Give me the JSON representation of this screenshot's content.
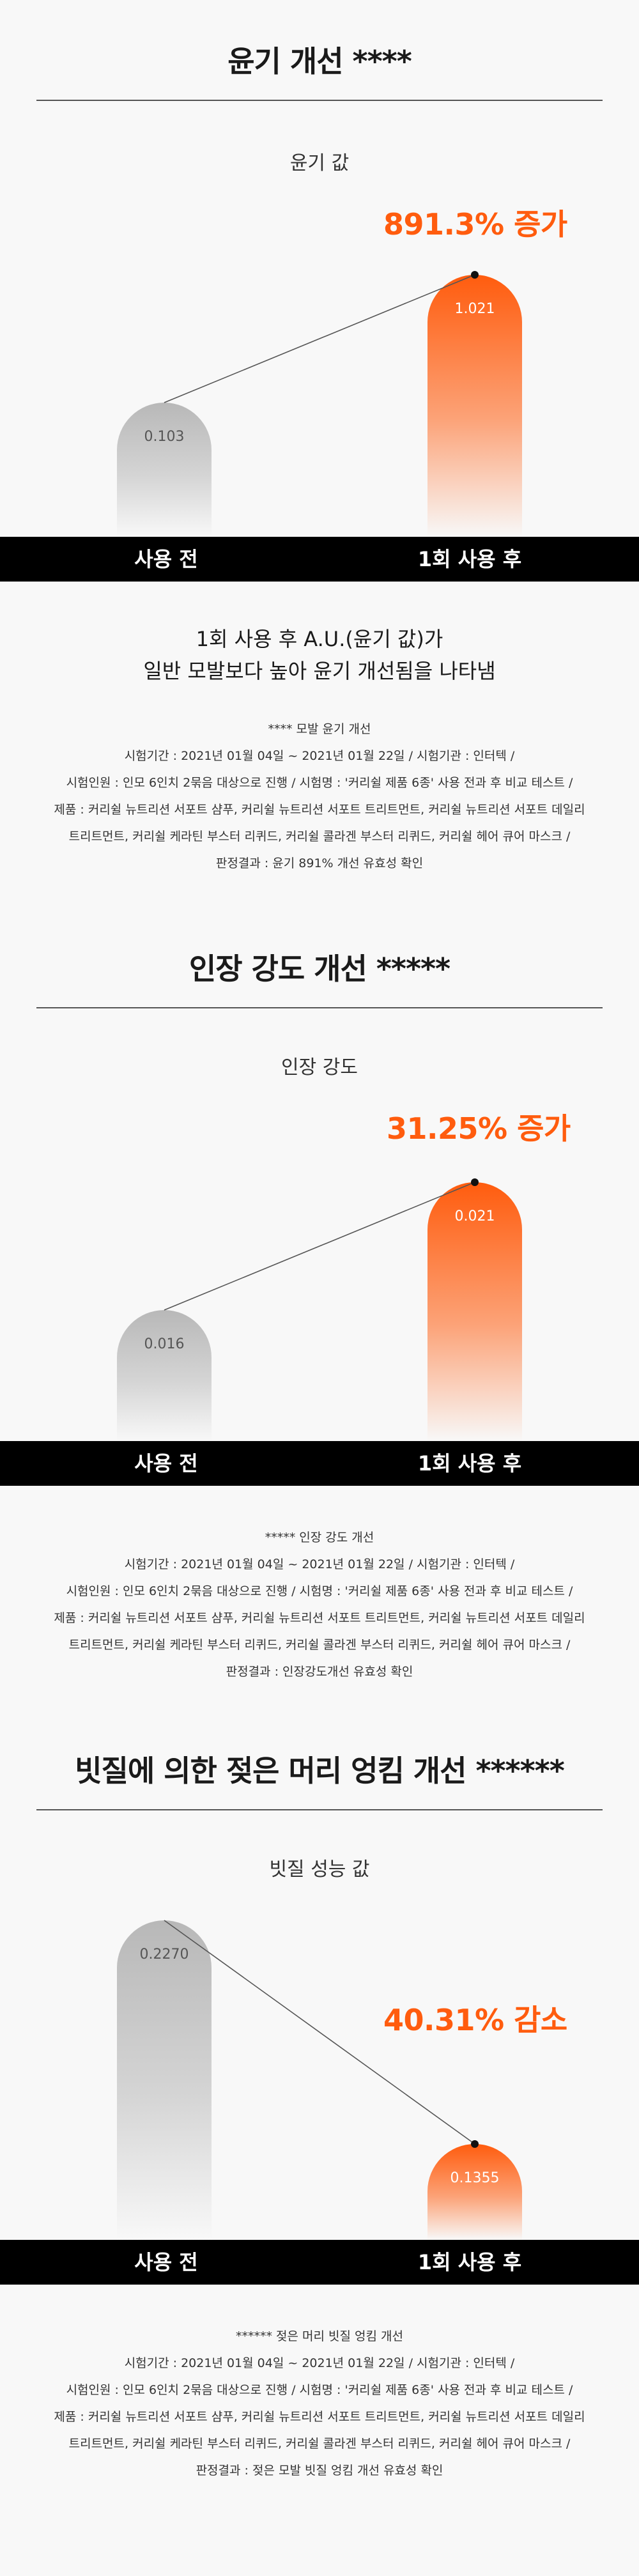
{
  "sections": [
    {
      "title": "윤기 개선 ****",
      "metric": "윤기 값",
      "result": "891.3% 증가",
      "before_label": "사용 전",
      "after_label": "1회 사용 후",
      "summary": [
        "1회 사용 후 A.U.(윤기 값)가",
        "일반 모발보다 높아 윤기 개선됨을 나타냄"
      ],
      "notes": [
        "**** 모발 윤기 개선",
        "시험기간 : 2021년 01월 04일 ~ 2021년 01월 22일 / 시험기관 : 인터텍 /",
        "시험인원 : 인모 6인치 2묶음 대상으로 진행 / 시험명 : '커리쉴 제품 6종' 사용 전과 후 비교 테스트 /",
        "제품 : 커리쉴 뉴트리션 서포트 샴푸, 커리쉴 뉴트리션 서포트 트리트먼트, 커리쉴 뉴트리션 서포트 데일리",
        "트리트먼트, 커리쉴 케라틴 부스터 리퀴드, 커리쉴 콜라겐 부스터 리퀴드, 커리쉴 헤어 큐어 마스크 /",
        "판정결과 : 윤기 891% 개선 유효성 확인"
      ]
    },
    {
      "title": "인장 강도 개선 *****",
      "metric": "인장 강도",
      "result": "31.25% 증가",
      "before_label": "사용 전",
      "after_label": "1회 사용 후",
      "notes": [
        "***** 인장 강도 개선",
        "시험기간 : 2021년 01월 04일 ~ 2021년 01월 22일 / 시험기관 : 인터텍 /",
        "시험인원 : 인모 6인치 2묶음 대상으로 진행 / 시험명 : '커리쉴 제품 6종' 사용 전과 후 비교 테스트 /",
        "제품 : 커리쉴 뉴트리션 서포트 샴푸, 커리쉴 뉴트리션 서포트 트리트먼트, 커리쉴 뉴트리션 서포트 데일리",
        "트리트먼트, 커리쉴 케라틴 부스터 리퀴드, 커리쉴 콜라겐 부스터 리퀴드, 커리쉴 헤어 큐어 마스크 /",
        "판정결과 : 인장강도개선 유효성 확인"
      ]
    },
    {
      "title": "빗질에 의한 젖은 머리 엉킴 개선 ******",
      "metric": "빗질 성능 값",
      "result": "40.31% 감소",
      "before_label": "사용 전",
      "after_label": "1회 사용 후",
      "notes": [
        "****** 젖은 머리 빗질 엉킴 개선",
        "시험기간 : 2021년 01월 04일 ~ 2021년 01월 22일 / 시험기관 : 인터텍 /",
        "시험인원 : 인모 6인치 2묶음 대상으로 진행 / 시험명 : '커리쉴 제품 6종' 사용 전과 후 비교 테스트 /",
        "제품 : 커리쉴 뉴트리션 서포트 샴푸, 커리쉴 뉴트리션 서포트 트리트먼트, 커리쉴 뉴트리션 서포트 데일리",
        "트리트먼트, 커리쉴 케라틴 부스터 리퀴드, 커리쉴 콜라겐 부스터 리퀴드, 커리쉴 헤어 큐어 마스크 /",
        "판정결과 : 젖은 모발 빗질 엉킴 개선 유효성 확인"
      ]
    }
  ],
  "chart_data": [
    {
      "type": "bar",
      "categories": [
        "사용 전",
        "1회 사용 후"
      ],
      "values": [
        0.103,
        1.021
      ],
      "value_labels": [
        "0.103",
        "1.021"
      ],
      "title": "윤기 값",
      "annotation": "891.3% 증가",
      "colors": [
        "#c8c8c8",
        "#ff5c0e"
      ]
    },
    {
      "type": "bar",
      "categories": [
        "사용 전",
        "1회 사용 후"
      ],
      "values": [
        0.016,
        0.021
      ],
      "value_labels": [
        "0.016",
        "0.021"
      ],
      "title": "인장 강도",
      "annotation": "31.25% 증가",
      "colors": [
        "#c8c8c8",
        "#ff5c0e"
      ]
    },
    {
      "type": "bar",
      "categories": [
        "사용 전",
        "1회 사용 후"
      ],
      "values": [
        0.227,
        0.1355
      ],
      "value_labels": [
        "0.2270",
        "0.1355"
      ],
      "title": "빗질 성능 값",
      "annotation": "40.31% 감소",
      "colors": [
        "#c8c8c8",
        "#ff5c0e"
      ]
    }
  ]
}
